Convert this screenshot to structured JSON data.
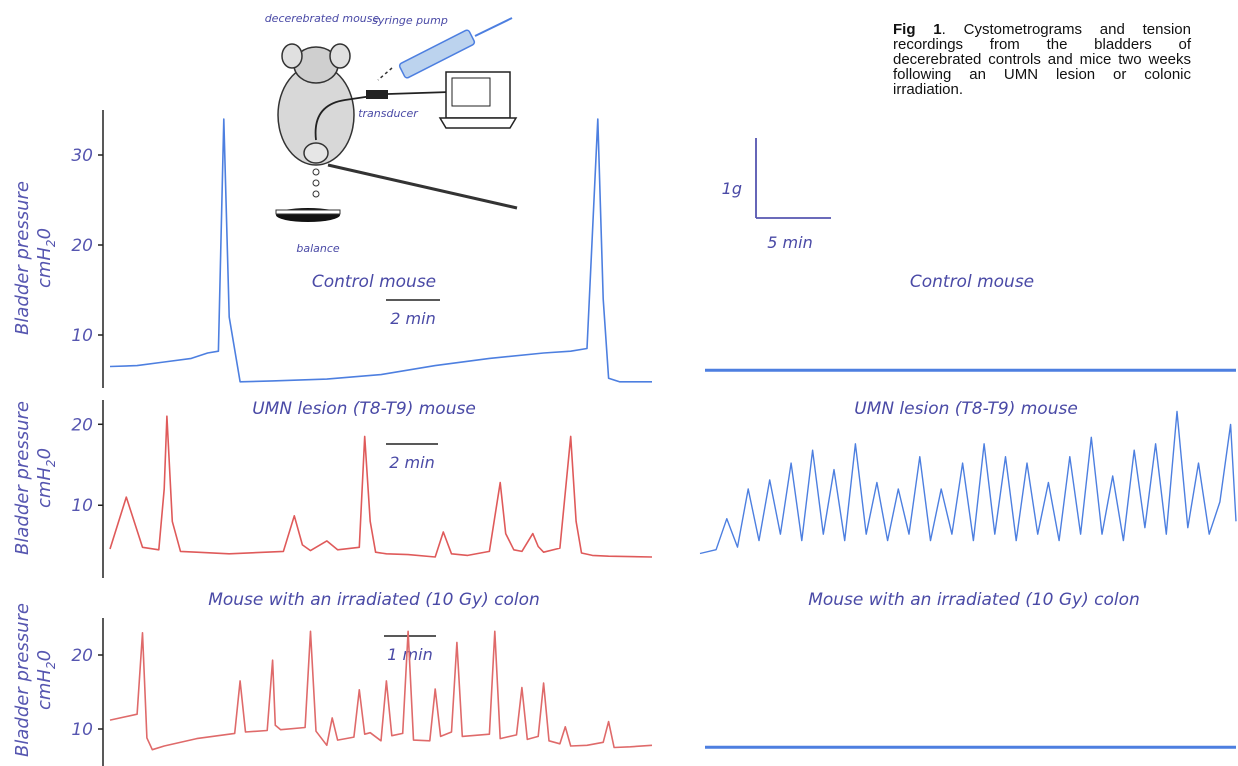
{
  "caption": {
    "label": "Fig 1",
    "text": ". Cystometrograms and tension recordings from the bladders of decerebrated controls and mice two weeks following an UMN lesion or colonic irradiation."
  },
  "illustration": {
    "mouse_label": "decerebrated mouse",
    "pump_label": "syringe pump",
    "transducer_label": "transducer",
    "balance_label": "balance"
  },
  "colors": {
    "control": "#4d7fe0",
    "umn_left": "#df5a5a",
    "irr_left": "#df6a6a",
    "umn_right": "#4d7fe0",
    "text": "#4a4aa6"
  },
  "tension_scale": {
    "y_label": "1g",
    "x_label": "5 min"
  },
  "chart_data": [
    {
      "type": "line",
      "panel": "control-pressure",
      "title": "Control mouse",
      "ylabel": "Bladder pressure cmH2O",
      "ylabel_main": "Bladder pressure",
      "ylabel_unit": "cmH",
      "ylabel_sub": "2",
      "ylabel_end": "0",
      "yticks": [
        "30",
        "20",
        "10"
      ],
      "ylim": [
        5,
        35
      ],
      "scale_bar": "2 min",
      "x": [
        0,
        0.5,
        1,
        1.5,
        1.8,
        2.0,
        2.1,
        2.2,
        2.4,
        3,
        4,
        5,
        6,
        7,
        8,
        8.5,
        8.8,
        9.0,
        9.1,
        9.2,
        9.4,
        10
      ],
      "y": [
        6.5,
        6.6,
        7.0,
        7.4,
        8.0,
        8.2,
        34,
        12,
        4.8,
        4.9,
        5.1,
        5.6,
        6.6,
        7.4,
        8.0,
        8.2,
        8.5,
        34,
        14,
        5.2,
        4.8,
        4.8
      ],
      "annotations": [
        {
          "x": 2.1,
          "y": 34
        },
        {
          "x": 9.1,
          "y": 34
        }
      ]
    },
    {
      "type": "line",
      "panel": "umn-pressure",
      "title": "UMN lesion (T8-T9) mouse",
      "ylabel": "Bladder pressure cmH2O",
      "ylabel_main": "Bladder pressure",
      "ylabel_unit": "cmH",
      "ylabel_sub": "2",
      "ylabel_end": "0",
      "yticks": [
        "20",
        "10"
      ],
      "ylim": [
        2,
        23
      ],
      "scale_bar": "2 min",
      "x": [
        0,
        0.3,
        0.6,
        0.9,
        1.0,
        1.05,
        1.15,
        1.3,
        1.6,
        2.2,
        3.2,
        3.4,
        3.55,
        3.7,
        4.0,
        4.2,
        4.6,
        4.7,
        4.8,
        4.9,
        5.1,
        5.5,
        6.0,
        6.15,
        6.3,
        6.6,
        7.0,
        7.2,
        7.3,
        7.45,
        7.6,
        7.8,
        7.9,
        8.0,
        8.3,
        8.5,
        8.6,
        8.7,
        8.9,
        9.2,
        10
      ],
      "y": [
        4.6,
        11,
        4.8,
        4.5,
        12,
        21,
        8,
        4.3,
        4.2,
        4.0,
        4.3,
        8.7,
        5.1,
        4.4,
        5.6,
        4.5,
        4.8,
        18.5,
        8,
        4.2,
        4.0,
        3.9,
        3.6,
        6.7,
        4.0,
        3.8,
        4.3,
        12.8,
        6.5,
        4.5,
        4.3,
        6.5,
        4.9,
        4.2,
        4.7,
        18.5,
        8,
        4.1,
        3.8,
        3.7,
        3.6
      ]
    },
    {
      "type": "line",
      "panel": "irradiated-pressure",
      "title": "Mouse with an irradiated (10 Gy) colon",
      "ylabel": "Bladder pressure cmH2O",
      "ylabel_main": "Bladder pressure",
      "ylabel_unit": "cmH",
      "ylabel_sub": "2",
      "ylabel_end": "0",
      "yticks": [
        "20",
        "10"
      ],
      "ylim": [
        5,
        25
      ],
      "scale_bar": "1 min",
      "x": [
        0,
        0.5,
        0.6,
        0.68,
        0.78,
        1.0,
        1.6,
        2.3,
        2.4,
        2.5,
        2.9,
        3.0,
        3.05,
        3.15,
        3.6,
        3.7,
        3.8,
        4.0,
        4.1,
        4.2,
        4.5,
        4.6,
        4.7,
        4.8,
        5.0,
        5.1,
        5.2,
        5.4,
        5.5,
        5.6,
        5.9,
        6.0,
        6.1,
        6.3,
        6.4,
        6.5,
        7.0,
        7.1,
        7.2,
        7.5,
        7.6,
        7.7,
        7.9,
        8.0,
        8.1,
        8.3,
        8.4,
        8.5,
        8.8,
        9.1,
        9.2,
        9.3,
        9.6,
        10
      ],
      "y": [
        11.2,
        12.0,
        23,
        8.8,
        7.2,
        7.7,
        8.7,
        9.4,
        16.5,
        9.6,
        9.8,
        19.3,
        10.5,
        9.9,
        10.2,
        23.2,
        9.7,
        7.8,
        11.5,
        8.5,
        8.9,
        15.3,
        9.3,
        9.5,
        8.4,
        16.5,
        9.1,
        9.4,
        23.2,
        8.5,
        8.4,
        15.4,
        9.0,
        9.6,
        21.7,
        9.0,
        9.3,
        23.2,
        8.7,
        9.2,
        15.6,
        8.6,
        9.0,
        16.2,
        8.4,
        8.0,
        10.3,
        7.7,
        7.8,
        8.2,
        11.0,
        7.5,
        7.6,
        7.8
      ]
    },
    {
      "type": "line",
      "panel": "control-tension",
      "title": "Control mouse",
      "x": [
        0,
        10
      ],
      "y": [
        0.03,
        0.03
      ]
    },
    {
      "type": "line",
      "panel": "umn-tension",
      "title": "UMN lesion (T8-T9) mouse",
      "x": [
        0,
        0.3,
        0.5,
        0.7,
        0.9,
        1.1,
        1.3,
        1.5,
        1.7,
        1.9,
        2.1,
        2.3,
        2.5,
        2.7,
        2.9,
        3.1,
        3.3,
        3.5,
        3.7,
        3.9,
        4.1,
        4.3,
        4.5,
        4.7,
        4.9,
        5.1,
        5.3,
        5.5,
        5.7,
        5.9,
        6.1,
        6.3,
        6.5,
        6.7,
        6.9,
        7.1,
        7.3,
        7.5,
        7.7,
        7.9,
        8.1,
        8.3,
        8.5,
        8.7,
        8.9,
        9.1,
        9.3,
        9.5,
        9.7,
        9.9,
        10
      ],
      "y": [
        0.05,
        0.08,
        0.32,
        0.1,
        0.55,
        0.15,
        0.62,
        0.2,
        0.75,
        0.15,
        0.85,
        0.2,
        0.7,
        0.15,
        0.9,
        0.2,
        0.6,
        0.15,
        0.55,
        0.2,
        0.8,
        0.15,
        0.55,
        0.2,
        0.75,
        0.15,
        0.9,
        0.2,
        0.8,
        0.15,
        0.75,
        0.2,
        0.6,
        0.15,
        0.8,
        0.2,
        0.95,
        0.2,
        0.65,
        0.15,
        0.85,
        0.25,
        0.9,
        0.2,
        1.15,
        0.25,
        0.75,
        0.2,
        0.45,
        1.05,
        0.3
      ]
    },
    {
      "type": "line",
      "panel": "irradiated-tension",
      "title": "Mouse with an irradiated (10 Gy) colon",
      "x": [
        0,
        10
      ],
      "y": [
        0.02,
        0.02
      ]
    }
  ]
}
